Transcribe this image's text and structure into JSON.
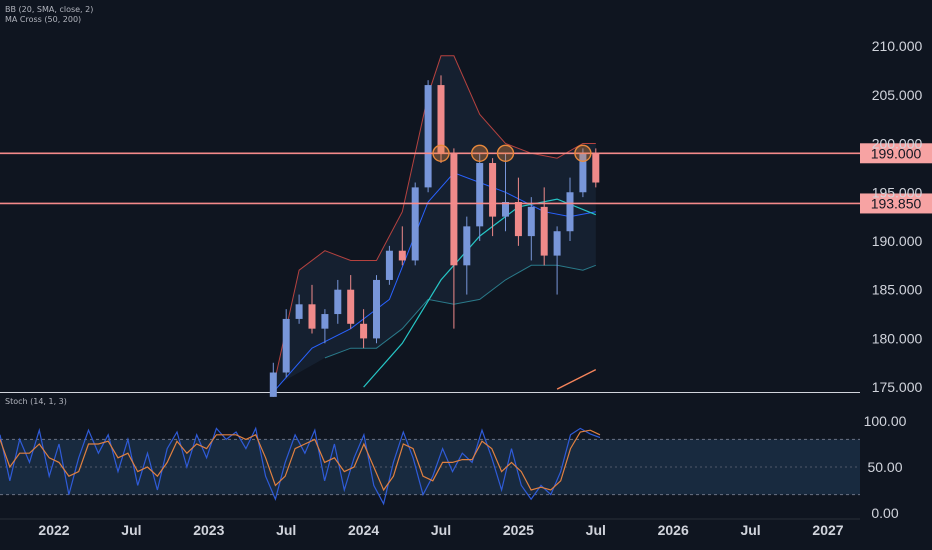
{
  "indicators": {
    "bb_label": "BB (20, SMA, close, 2)",
    "ma_label": "MA Cross (50, 200)",
    "stoch_label": "Stoch (14, 1, 3)"
  },
  "colors": {
    "background": "#0f1520",
    "bull": "#7896d9",
    "bear": "#ef8a8a",
    "level_line": "#f58a8a",
    "level_badge": "#f7a3a3",
    "bb_upper": "#b5423f",
    "bb_lower": "#2a7a8a",
    "bb_basis": "#2962ff",
    "ma50": "#26c6c6",
    "ma200": "#f5845b",
    "stoch_k": "#2f5bd8",
    "stoch_d": "#e08040",
    "touch_marker": "#e8893c"
  },
  "chart_data": [
    {
      "type": "candlestick",
      "name": "price",
      "x_axis_labels": [
        "2022",
        "Jul",
        "2023",
        "Jul",
        "2024",
        "Jul",
        "2025",
        "Jul",
        "2026",
        "Jul",
        "2027"
      ],
      "y_ticks": [
        "210.000",
        "205.000",
        "200.000",
        "195.000",
        "190.000",
        "185.000",
        "180.000",
        "175.000"
      ],
      "ylim": [
        174.5,
        213.5
      ],
      "horizontal_levels": [
        {
          "value": 199.0,
          "label": "199.000"
        },
        {
          "value": 193.85,
          "label": "193.850"
        }
      ],
      "touch_markers": [
        {
          "date": "2024-07",
          "price": 199.0
        },
        {
          "date": "2024-10",
          "price": 199.0
        },
        {
          "date": "2024-12",
          "price": 199.0
        },
        {
          "date": "2025-06",
          "price": 199.0
        }
      ],
      "candles": [
        {
          "date": "2023-06",
          "o": 174.0,
          "h": 177.5,
          "l": 174.0,
          "c": 176.5
        },
        {
          "date": "2023-07",
          "o": 176.5,
          "h": 183.0,
          "l": 176.0,
          "c": 182.0
        },
        {
          "date": "2023-08",
          "o": 182.0,
          "h": 184.5,
          "l": 181.5,
          "c": 183.5
        },
        {
          "date": "2023-09",
          "o": 183.5,
          "h": 185.5,
          "l": 180.5,
          "c": 181.0
        },
        {
          "date": "2023-10",
          "o": 181.0,
          "h": 183.0,
          "l": 179.5,
          "c": 182.5
        },
        {
          "date": "2023-11",
          "o": 182.5,
          "h": 186.0,
          "l": 181.5,
          "c": 185.0
        },
        {
          "date": "2023-12",
          "o": 185.0,
          "h": 186.5,
          "l": 181.0,
          "c": 181.5
        },
        {
          "date": "2024-01",
          "o": 181.5,
          "h": 183.0,
          "l": 179.0,
          "c": 180.0
        },
        {
          "date": "2024-02",
          "o": 180.0,
          "h": 186.5,
          "l": 179.5,
          "c": 186.0
        },
        {
          "date": "2024-03",
          "o": 186.0,
          "h": 189.5,
          "l": 185.5,
          "c": 189.0
        },
        {
          "date": "2024-04",
          "o": 189.0,
          "h": 191.5,
          "l": 187.5,
          "c": 188.0
        },
        {
          "date": "2024-05",
          "o": 188.0,
          "h": 196.0,
          "l": 187.5,
          "c": 195.5
        },
        {
          "date": "2024-06",
          "o": 195.5,
          "h": 206.5,
          "l": 195.0,
          "c": 206.0
        },
        {
          "date": "2024-07",
          "o": 206.0,
          "h": 207.0,
          "l": 198.0,
          "c": 199.0
        },
        {
          "date": "2024-08",
          "o": 199.0,
          "h": 199.5,
          "l": 181.0,
          "c": 187.5
        },
        {
          "date": "2024-09",
          "o": 187.5,
          "h": 192.5,
          "l": 184.5,
          "c": 191.5
        },
        {
          "date": "2024-10",
          "o": 191.5,
          "h": 199.0,
          "l": 190.0,
          "c": 198.0
        },
        {
          "date": "2024-11",
          "o": 198.0,
          "h": 198.5,
          "l": 190.5,
          "c": 192.5
        },
        {
          "date": "2024-12",
          "o": 192.5,
          "h": 199.0,
          "l": 191.0,
          "c": 194.0
        },
        {
          "date": "2025-01",
          "o": 194.0,
          "h": 196.5,
          "l": 189.5,
          "c": 190.5
        },
        {
          "date": "2025-02",
          "o": 190.5,
          "h": 194.5,
          "l": 188.0,
          "c": 193.5
        },
        {
          "date": "2025-03",
          "o": 193.5,
          "h": 195.5,
          "l": 187.5,
          "c": 188.5
        },
        {
          "date": "2025-04",
          "o": 188.5,
          "h": 191.5,
          "l": 184.5,
          "c": 191.0
        },
        {
          "date": "2025-05",
          "o": 191.0,
          "h": 196.5,
          "l": 190.0,
          "c": 195.0
        },
        {
          "date": "2025-06",
          "o": 195.0,
          "h": 199.5,
          "l": 194.5,
          "c": 199.0
        },
        {
          "date": "2025-07",
          "o": 199.0,
          "h": 199.5,
          "l": 195.5,
          "c": 196.0
        }
      ],
      "bb_upper": [
        {
          "date": "2023-06",
          "v": 175
        },
        {
          "date": "2023-08",
          "v": 187
        },
        {
          "date": "2023-10",
          "v": 189
        },
        {
          "date": "2023-12",
          "v": 188
        },
        {
          "date": "2024-02",
          "v": 188
        },
        {
          "date": "2024-04",
          "v": 193
        },
        {
          "date": "2024-06",
          "v": 205
        },
        {
          "date": "2024-07",
          "v": 209
        },
        {
          "date": "2024-08",
          "v": 209
        },
        {
          "date": "2024-10",
          "v": 203
        },
        {
          "date": "2024-12",
          "v": 200
        },
        {
          "date": "2025-02",
          "v": 199
        },
        {
          "date": "2025-04",
          "v": 198.5
        },
        {
          "date": "2025-06",
          "v": 200
        },
        {
          "date": "2025-07",
          "v": 200
        }
      ],
      "bb_basis": [
        {
          "date": "2023-06",
          "v": 174.5
        },
        {
          "date": "2023-09",
          "v": 179
        },
        {
          "date": "2023-12",
          "v": 181
        },
        {
          "date": "2024-03",
          "v": 184
        },
        {
          "date": "2024-06",
          "v": 194
        },
        {
          "date": "2024-08",
          "v": 197
        },
        {
          "date": "2024-10",
          "v": 196
        },
        {
          "date": "2024-12",
          "v": 195
        },
        {
          "date": "2025-03",
          "v": 193
        },
        {
          "date": "2025-05",
          "v": 192.5
        },
        {
          "date": "2025-07",
          "v": 193
        }
      ],
      "bb_lower": [
        {
          "date": "2023-10",
          "v": 178
        },
        {
          "date": "2023-12",
          "v": 179
        },
        {
          "date": "2024-02",
          "v": 179
        },
        {
          "date": "2024-04",
          "v": 181
        },
        {
          "date": "2024-06",
          "v": 184
        },
        {
          "date": "2024-08",
          "v": 183.5
        },
        {
          "date": "2024-10",
          "v": 184
        },
        {
          "date": "2024-12",
          "v": 186
        },
        {
          "date": "2025-02",
          "v": 187.5
        },
        {
          "date": "2025-04",
          "v": 187.5
        },
        {
          "date": "2025-06",
          "v": 187
        },
        {
          "date": "2025-07",
          "v": 187.5
        }
      ],
      "ma50": [
        {
          "date": "2024-01",
          "v": 175
        },
        {
          "date": "2024-04",
          "v": 179.5
        },
        {
          "date": "2024-07",
          "v": 186
        },
        {
          "date": "2024-10",
          "v": 190.5
        },
        {
          "date": "2025-01",
          "v": 193.5
        },
        {
          "date": "2025-04",
          "v": 194.3
        },
        {
          "date": "2025-07",
          "v": 192.7
        }
      ],
      "ma200": [
        {
          "date": "2025-04",
          "v": 174.8
        },
        {
          "date": "2025-07",
          "v": 176.8
        }
      ]
    },
    {
      "type": "line",
      "name": "stochastic",
      "y_ticks": [
        "100.00",
        "50.00",
        "0.00"
      ],
      "ylim": [
        0,
        100
      ],
      "band": [
        20,
        80
      ],
      "k_points": [
        [
          0,
          85
        ],
        [
          2,
          35
        ],
        [
          4,
          80
        ],
        [
          6,
          55
        ],
        [
          8,
          90
        ],
        [
          10,
          40
        ],
        [
          12,
          75
        ],
        [
          14,
          20
        ],
        [
          16,
          60
        ],
        [
          18,
          90
        ],
        [
          20,
          65
        ],
        [
          22,
          85
        ],
        [
          24,
          45
        ],
        [
          26,
          80
        ],
        [
          28,
          30
        ],
        [
          30,
          65
        ],
        [
          32,
          25
        ],
        [
          34,
          70
        ],
        [
          36,
          88
        ],
        [
          38,
          50
        ],
        [
          40,
          85
        ],
        [
          42,
          60
        ],
        [
          44,
          92
        ],
        [
          46,
          80
        ],
        [
          48,
          88
        ],
        [
          50,
          70
        ],
        [
          52,
          92
        ],
        [
          54,
          40
        ],
        [
          56,
          15
        ],
        [
          58,
          55
        ],
        [
          60,
          85
        ],
        [
          62,
          65
        ],
        [
          64,
          90
        ],
        [
          66,
          35
        ],
        [
          68,
          75
        ],
        [
          70,
          25
        ],
        [
          72,
          60
        ],
        [
          74,
          85
        ],
        [
          76,
          30
        ],
        [
          78,
          10
        ],
        [
          80,
          55
        ],
        [
          82,
          88
        ],
        [
          84,
          60
        ],
        [
          86,
          20
        ],
        [
          88,
          40
        ],
        [
          90,
          70
        ],
        [
          92,
          45
        ],
        [
          94,
          65
        ],
        [
          96,
          55
        ],
        [
          98,
          90
        ],
        [
          100,
          60
        ],
        [
          102,
          25
        ],
        [
          104,
          70
        ],
        [
          106,
          30
        ],
        [
          108,
          15
        ],
        [
          110,
          30
        ],
        [
          112,
          20
        ],
        [
          114,
          45
        ],
        [
          116,
          85
        ],
        [
          118,
          92
        ],
        [
          120,
          86
        ],
        [
          122,
          82
        ]
      ],
      "d_points": [
        [
          0,
          80
        ],
        [
          2,
          50
        ],
        [
          4,
          65
        ],
        [
          6,
          65
        ],
        [
          8,
          75
        ],
        [
          10,
          60
        ],
        [
          12,
          55
        ],
        [
          14,
          40
        ],
        [
          16,
          45
        ],
        [
          18,
          75
        ],
        [
          20,
          75
        ],
        [
          22,
          78
        ],
        [
          24,
          60
        ],
        [
          26,
          65
        ],
        [
          28,
          45
        ],
        [
          30,
          50
        ],
        [
          32,
          40
        ],
        [
          34,
          55
        ],
        [
          36,
          78
        ],
        [
          38,
          65
        ],
        [
          40,
          75
        ],
        [
          42,
          70
        ],
        [
          44,
          85
        ],
        [
          46,
          85
        ],
        [
          48,
          85
        ],
        [
          50,
          80
        ],
        [
          52,
          85
        ],
        [
          54,
          60
        ],
        [
          56,
          30
        ],
        [
          58,
          40
        ],
        [
          60,
          70
        ],
        [
          62,
          75
        ],
        [
          64,
          80
        ],
        [
          66,
          55
        ],
        [
          68,
          60
        ],
        [
          70,
          45
        ],
        [
          72,
          50
        ],
        [
          74,
          75
        ],
        [
          76,
          50
        ],
        [
          78,
          25
        ],
        [
          80,
          40
        ],
        [
          82,
          75
        ],
        [
          84,
          70
        ],
        [
          86,
          40
        ],
        [
          88,
          35
        ],
        [
          90,
          55
        ],
        [
          92,
          55
        ],
        [
          94,
          58
        ],
        [
          96,
          58
        ],
        [
          98,
          78
        ],
        [
          100,
          70
        ],
        [
          102,
          45
        ],
        [
          104,
          55
        ],
        [
          106,
          45
        ],
        [
          108,
          25
        ],
        [
          110,
          28
        ],
        [
          112,
          25
        ],
        [
          114,
          35
        ],
        [
          116,
          70
        ],
        [
          118,
          88
        ],
        [
          120,
          90
        ],
        [
          122,
          85
        ]
      ]
    }
  ]
}
